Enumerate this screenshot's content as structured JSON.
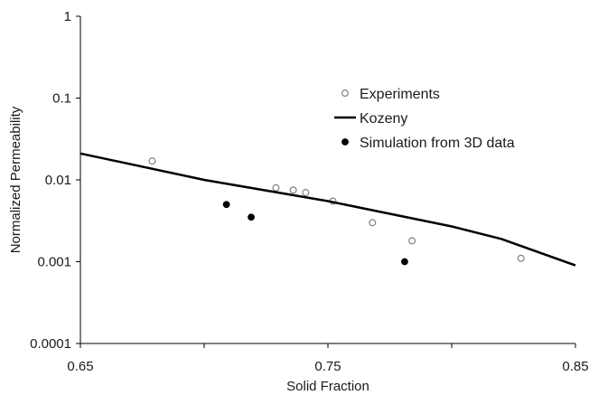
{
  "chart_data": {
    "type": "scatter",
    "xlabel": "Solid Fraction",
    "ylabel": "Normalized Permeability",
    "xlim": [
      0.65,
      0.85
    ],
    "ylim": [
      0.0001,
      1
    ],
    "yscale": "log",
    "x_ticks": [
      0.65,
      0.7,
      0.75,
      0.8,
      0.85
    ],
    "x_tick_labels": [
      "0.65",
      "",
      "0.75",
      "",
      "0.85"
    ],
    "y_ticks": [
      0.0001,
      0.001,
      0.01,
      0.1,
      1
    ],
    "y_tick_labels": [
      "0.0001",
      "0.001",
      "0.01",
      "0.1",
      "1"
    ],
    "grid": false,
    "legend_position": "upper-right",
    "series": [
      {
        "name": "Experiments",
        "style": "open-circle",
        "color": "#808080",
        "x": [
          0.679,
          0.729,
          0.736,
          0.741,
          0.752,
          0.768,
          0.784,
          0.828
        ],
        "y": [
          0.017,
          0.008,
          0.0075,
          0.007,
          0.0055,
          0.003,
          0.0018,
          0.0011
        ]
      },
      {
        "name": "Kozeny",
        "style": "line",
        "color": "#000000",
        "x": [
          0.65,
          0.7,
          0.75,
          0.8,
          0.82,
          0.85
        ],
        "y": [
          0.021,
          0.01,
          0.0055,
          0.0027,
          0.0019,
          0.0009
        ]
      },
      {
        "name": "Simulation from 3D data",
        "style": "filled-circle",
        "color": "#000000",
        "x": [
          0.709,
          0.719,
          0.781
        ],
        "y": [
          0.005,
          0.0035,
          0.001
        ]
      }
    ]
  }
}
